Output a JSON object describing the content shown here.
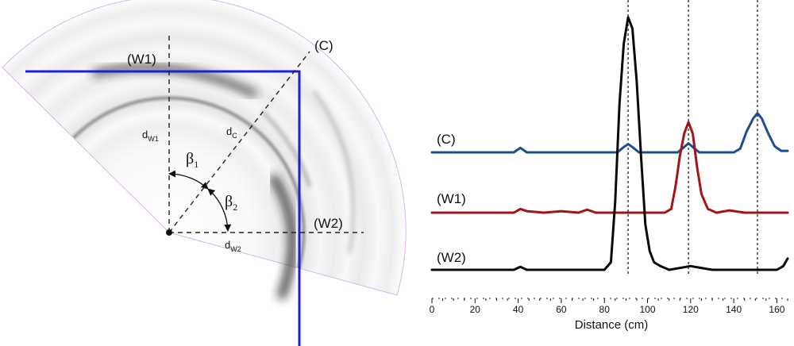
{
  "diagram": {
    "labels": {
      "w1": "(W1)",
      "c": "(C)",
      "w2": "(W2)",
      "d_w1": "d",
      "d_w1_sub": "W1",
      "d_c": "d",
      "d_c_sub": "C",
      "d_w2": "d",
      "d_w2_sub": "W2",
      "beta1": "β",
      "beta1_sub": "1",
      "beta2": "β",
      "beta2_sub": "2"
    },
    "colors": {
      "wall_line": "#1f1fd6",
      "dashed": "#222222",
      "sector_edge": "#d9b6e6"
    }
  },
  "chart_data": {
    "type": "line",
    "xlabel": "Distance (cm)",
    "xlim": [
      0,
      165
    ],
    "x_ticks": [
      0,
      20,
      40,
      60,
      80,
      100,
      120,
      140,
      160
    ],
    "vlines": [
      91,
      119,
      151
    ],
    "series": [
      {
        "name": "(C)",
        "color": "#1a4f8f",
        "x": [
          0,
          38,
          41,
          44,
          60,
          80,
          86,
          89,
          91,
          93,
          96,
          100,
          110,
          114,
          117,
          119,
          121,
          124,
          128,
          140,
          143,
          146,
          149,
          151,
          153,
          156,
          159,
          162,
          165
        ],
        "y": [
          0.0,
          0.0,
          0.06,
          0.0,
          0.0,
          0.0,
          0.0,
          0.07,
          0.11,
          0.07,
          0.0,
          0.0,
          0.0,
          0.0,
          0.07,
          0.12,
          0.07,
          0.0,
          0.0,
          0.0,
          0.05,
          0.28,
          0.45,
          0.52,
          0.45,
          0.25,
          0.08,
          0.02,
          0.02
        ]
      },
      {
        "name": "(W1)",
        "color": "#a01515",
        "x": [
          0,
          38,
          41,
          44,
          52,
          60,
          68,
          72,
          76,
          80,
          100,
          108,
          111,
          113,
          115,
          117,
          119,
          121,
          123,
          125,
          128,
          132,
          138,
          145,
          150,
          160,
          165
        ],
        "y": [
          0.0,
          0.0,
          0.05,
          0.02,
          0.0,
          0.02,
          0.0,
          0.04,
          0.0,
          0.0,
          0.0,
          0.0,
          0.05,
          0.35,
          0.75,
          1.05,
          1.2,
          1.05,
          0.6,
          0.25,
          0.05,
          0.0,
          0.03,
          0.0,
          0.0,
          0.0,
          0.0
        ]
      },
      {
        "name": "(W2)",
        "color": "#0a0a0a",
        "x": [
          0,
          38,
          41,
          44,
          60,
          80,
          83,
          85,
          87,
          89,
          91,
          93,
          95,
          97,
          99,
          101,
          103,
          106,
          110,
          120,
          130,
          140,
          160,
          163,
          165
        ],
        "y": [
          0.0,
          0.0,
          0.04,
          0.0,
          0.0,
          0.0,
          0.1,
          0.9,
          2.2,
          3.0,
          3.35,
          3.2,
          2.5,
          1.5,
          0.6,
          0.25,
          0.1,
          0.05,
          0.0,
          0.05,
          0.0,
          0.0,
          0.0,
          0.05,
          0.15
        ]
      }
    ]
  }
}
